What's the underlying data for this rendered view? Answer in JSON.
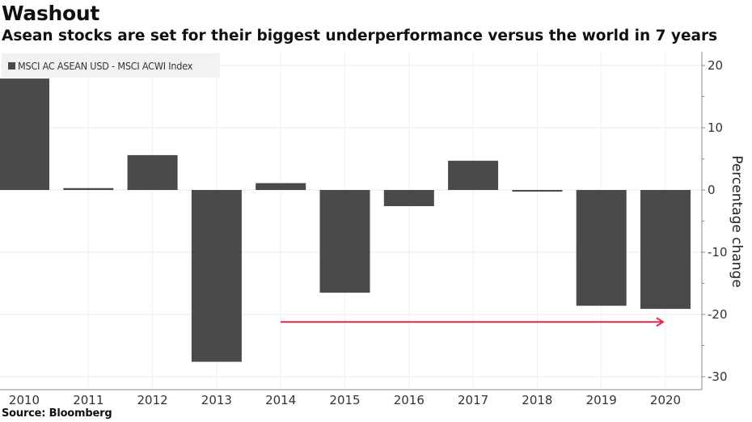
{
  "header": {
    "title": "Washout",
    "subtitle": "Asean stocks are set for their biggest underperformance versus the world in 7 years"
  },
  "footer": {
    "source": "Source: Bloomberg"
  },
  "colors": {
    "bar": "#4a4a4a",
    "arrow": "#e0284a",
    "grid": "#e8e8e8",
    "axis": "#888888"
  },
  "chart_data": {
    "type": "bar",
    "title": "Washout",
    "subtitle": "Asean stocks are set for their biggest underperformance versus the world in 7 years",
    "xlabel": "",
    "ylabel": "Percentage change",
    "legend": {
      "entries": [
        "MSCI AC ASEAN USD - MSCI ACWI Index"
      ],
      "placement": "top-left"
    },
    "categories": [
      "2010",
      "2011",
      "2012",
      "2013",
      "2014",
      "2015",
      "2016",
      "2017",
      "2018",
      "2019",
      "2020"
    ],
    "series": [
      {
        "name": "MSCI AC ASEAN USD - MSCI ACWI Index",
        "values": [
          17.9,
          0.3,
          5.6,
          -27.6,
          1.1,
          -16.5,
          -2.6,
          4.7,
          -0.1,
          -18.6,
          -19.1
        ]
      }
    ],
    "ylim": [
      -32,
      22
    ],
    "yticks": [
      20,
      10,
      0,
      -10,
      -20,
      -30
    ],
    "y_axis_side": "right",
    "grid": true,
    "annotations": [
      {
        "type": "arrow",
        "description": "Red arrow pointing right at about -21, spanning from 2014 to 2020",
        "from_x": "2014",
        "to_x": "2020",
        "y": -21.2
      }
    ],
    "source": "Source: Bloomberg"
  }
}
